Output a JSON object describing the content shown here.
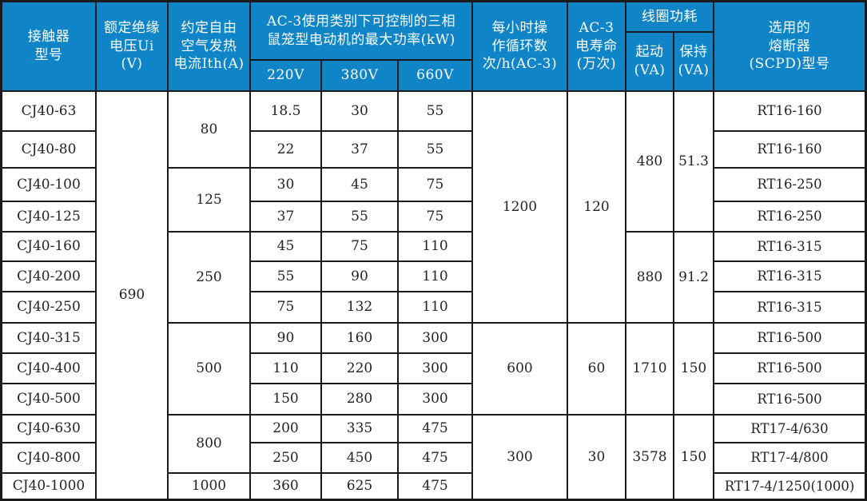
{
  "colors": {
    "header_bg": "#0f85c8",
    "header_text": "#ffffff",
    "border": "#1a1a1a",
    "body_text": "#232323"
  },
  "header": {
    "contactor_model": "接触器\n型号",
    "rated_insulation_voltage": "额定绝缘\n电压Ui (V)",
    "conventional_thermal_current": "约定自由\n空气发热\n电流Ith(A)",
    "ac3_max_power": "AC-3使用类别下可控制的三相\n鼠笼型电动机的最大功率(kW)",
    "voltage_cols": [
      "220V",
      "380V",
      "660V"
    ],
    "ops_per_hour": "每小时操\n作循环数\n次/h(AC-3)",
    "ac3_life": "AC-3\n电寿命\n(万次)",
    "coil_power": "线圈功耗",
    "pickup": "起动\n(VA)",
    "holding": "保持\n(VA)",
    "fuse": "选用的\n熔断器\n(SCPD)型号"
  },
  "shared": {
    "ui_voltage": "690"
  },
  "ith_groups": [
    {
      "value": "80",
      "span": 2
    },
    {
      "value": "125",
      "span": 2
    },
    {
      "value": "250",
      "span": 3
    },
    {
      "value": "500",
      "span": 3
    },
    {
      "value": "800",
      "span": 2
    },
    {
      "value": "1000",
      "span": 1
    }
  ],
  "ops_groups": [
    {
      "ops": "1200",
      "life": "120",
      "span": 7
    },
    {
      "ops": "600",
      "life": "60",
      "span": 3
    },
    {
      "ops": "300",
      "life": "30",
      "span": 3
    }
  ],
  "coil_groups": [
    {
      "start": "480",
      "hold": "51.3",
      "span": 4
    },
    {
      "start": "880",
      "hold": "91.2",
      "span": 3
    },
    {
      "start": "1710",
      "hold": "150",
      "span": 3
    },
    {
      "start": "3578",
      "hold": "150",
      "span": 3
    }
  ],
  "rows": [
    {
      "model": "CJ40-63",
      "kw220": "18.5",
      "kw380": "30",
      "kw660": "55",
      "fuse": "RT16-160"
    },
    {
      "model": "CJ40-80",
      "kw220": "22",
      "kw380": "37",
      "kw660": "55",
      "fuse": "RT16-160"
    },
    {
      "model": "CJ40-100",
      "kw220": "30",
      "kw380": "45",
      "kw660": "75",
      "fuse": "RT16-250"
    },
    {
      "model": "CJ40-125",
      "kw220": "37",
      "kw380": "55",
      "kw660": "75",
      "fuse": "RT16-250"
    },
    {
      "model": "CJ40-160",
      "kw220": "45",
      "kw380": "75",
      "kw660": "110",
      "fuse": "RT16-315"
    },
    {
      "model": "CJ40-200",
      "kw220": "55",
      "kw380": "90",
      "kw660": "110",
      "fuse": "RT16-315"
    },
    {
      "model": "CJ40-250",
      "kw220": "75",
      "kw380": "132",
      "kw660": "110",
      "fuse": "RT16-315"
    },
    {
      "model": "CJ40-315",
      "kw220": "90",
      "kw380": "160",
      "kw660": "300",
      "fuse": "RT16-500"
    },
    {
      "model": "CJ40-400",
      "kw220": "110",
      "kw380": "220",
      "kw660": "300",
      "fuse": "RT16-500"
    },
    {
      "model": "CJ40-500",
      "kw220": "150",
      "kw380": "280",
      "kw660": "300",
      "fuse": "RT16-500"
    },
    {
      "model": "CJ40-630",
      "kw220": "200",
      "kw380": "335",
      "kw660": "475",
      "fuse": "RT17-4/630"
    },
    {
      "model": "CJ40-800",
      "kw220": "250",
      "kw380": "450",
      "kw660": "475",
      "fuse": "RT17-4/800"
    },
    {
      "model": "CJ40-1000",
      "kw220": "360",
      "kw380": "625",
      "kw660": "475",
      "fuse": "RT17-4/1250(1000)"
    }
  ]
}
